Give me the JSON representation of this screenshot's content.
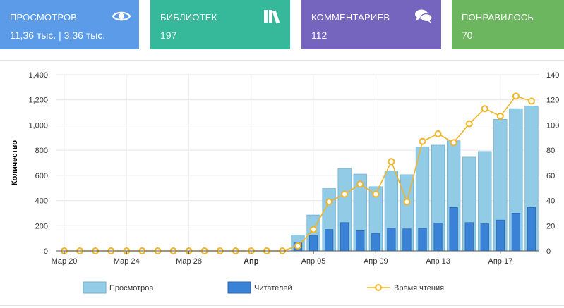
{
  "cards": [
    {
      "title": "ПРОСМОТРОВ",
      "value": "11,36 тыс. | 3,36 тыс.",
      "color": "#5b9be8",
      "icon": "eye-icon"
    },
    {
      "title": "БИБЛИОТЕК",
      "value": "197",
      "color": "#35b99a",
      "icon": "books-icon"
    },
    {
      "title": "КОММЕНТАРИЕВ",
      "value": "112",
      "color": "#7565bf",
      "icon": "chat-bubbles-icon"
    },
    {
      "title": "ПОНРАВИЛОСЬ",
      "value": "70",
      "color": "#6bb65e",
      "icon": ""
    }
  ],
  "chart_data": {
    "type": "bar",
    "ylabel": "Количество",
    "ylim": [
      0,
      1400
    ],
    "y2lim": [
      0,
      140
    ],
    "y_ticks": [
      "0",
      "200",
      "400",
      "600",
      "800",
      "1,000",
      "1,200",
      "1,400"
    ],
    "y2_ticks": [
      "0",
      "20",
      "40",
      "60",
      "80",
      "100",
      "120",
      "140"
    ],
    "x_ticks": [
      {
        "label": "Мар 20",
        "index": 0,
        "bold": false
      },
      {
        "label": "Мар 24",
        "index": 4,
        "bold": false
      },
      {
        "label": "Мар 28",
        "index": 8,
        "bold": false
      },
      {
        "label": "Апр",
        "index": 12,
        "bold": true
      },
      {
        "label": "Апр 05",
        "index": 16,
        "bold": false
      },
      {
        "label": "Апр 09",
        "index": 20,
        "bold": false
      },
      {
        "label": "Апр 13",
        "index": 24,
        "bold": false
      },
      {
        "label": "Апр 17",
        "index": 28,
        "bold": false
      }
    ],
    "grid": true,
    "legend_position": "bottom",
    "series": [
      {
        "name": "Просмотров",
        "kind": "bar",
        "axis": "left",
        "color": "#92cbe5",
        "stroke": "#6fb2d3",
        "values": [
          0,
          0,
          0,
          0,
          0,
          0,
          0,
          0,
          0,
          0,
          0,
          0,
          0,
          0,
          0,
          125,
          285,
          495,
          655,
          610,
          510,
          635,
          605,
          825,
          840,
          875,
          745,
          790,
          1045,
          1130,
          1150
        ]
      },
      {
        "name": "Читателей",
        "kind": "bar",
        "axis": "left",
        "color": "#3a82d6",
        "stroke": "#2a68b8",
        "values": [
          0,
          0,
          0,
          0,
          0,
          0,
          0,
          0,
          0,
          0,
          0,
          0,
          0,
          0,
          0,
          70,
          120,
          170,
          225,
          160,
          140,
          180,
          175,
          180,
          220,
          345,
          225,
          215,
          245,
          300,
          345
        ]
      },
      {
        "name": "Время чтения",
        "kind": "line",
        "axis": "right",
        "color": "#f0b429",
        "values": [
          0,
          0,
          0,
          0,
          0,
          0,
          0,
          0,
          0,
          0,
          0,
          0,
          0,
          0,
          0,
          4,
          17,
          39,
          45,
          53,
          45,
          71,
          39,
          87,
          93,
          86,
          101,
          113,
          107,
          123,
          119
        ]
      }
    ]
  }
}
